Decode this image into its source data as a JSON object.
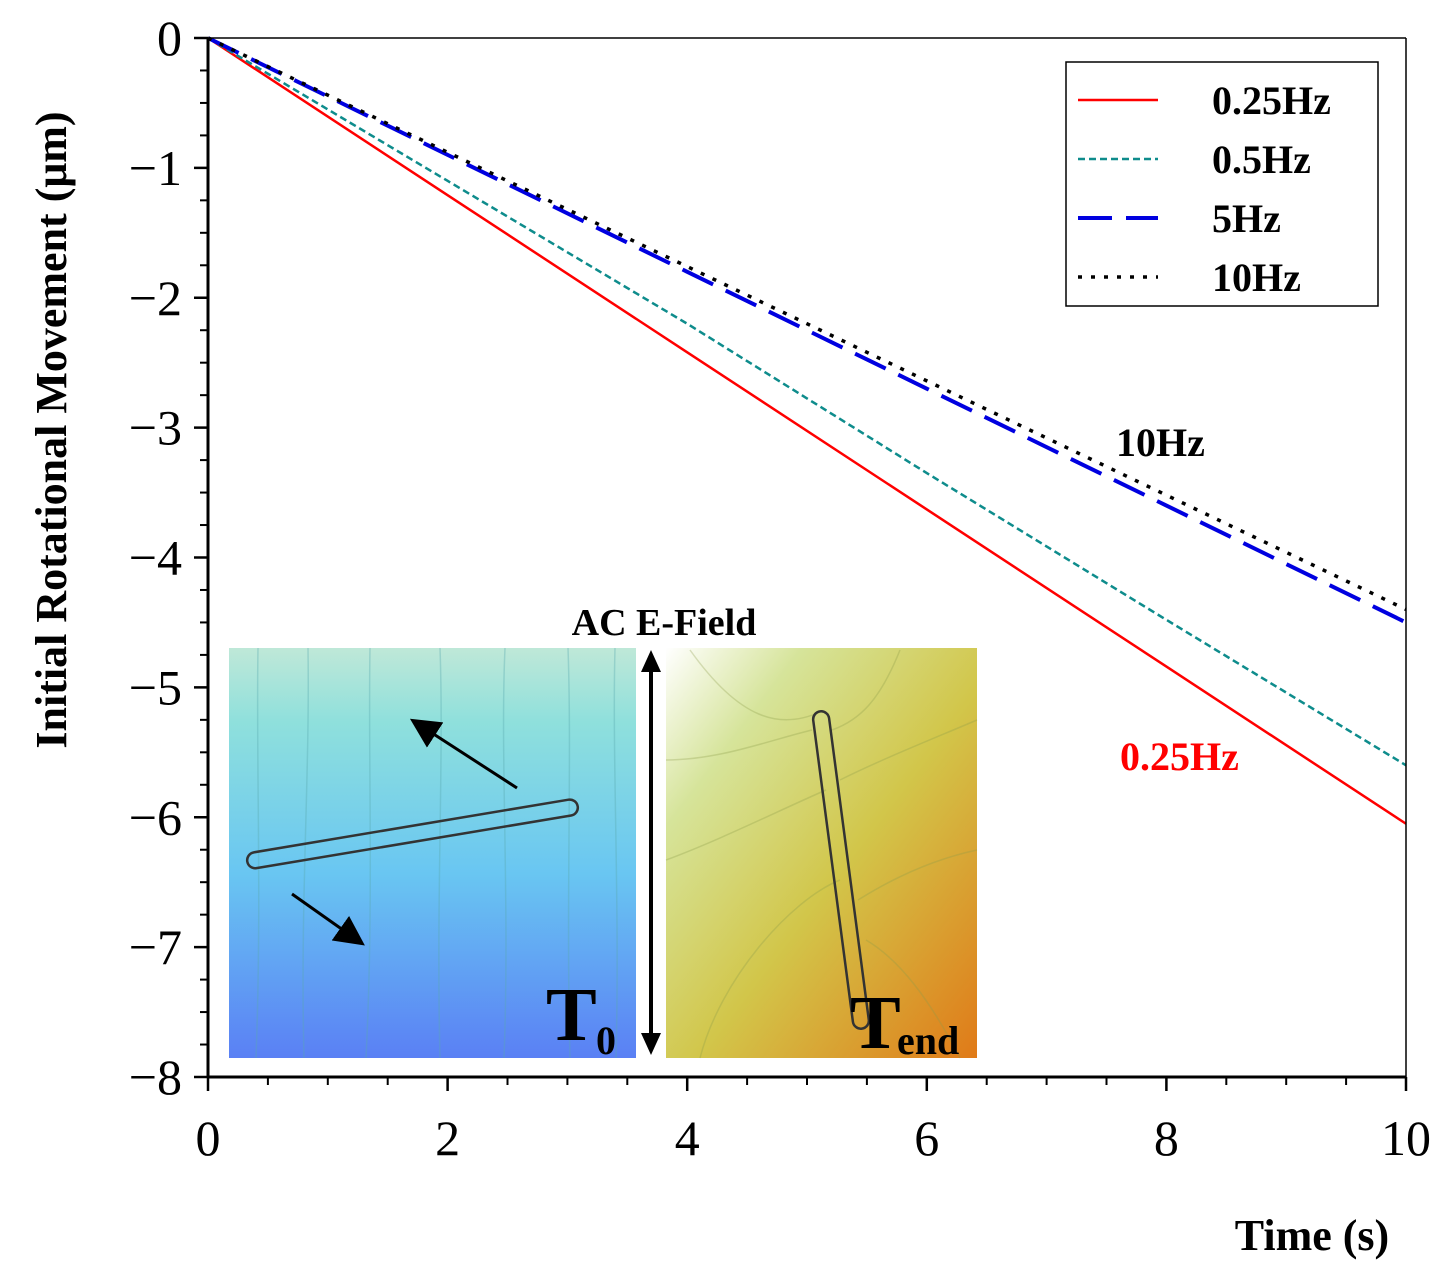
{
  "chart_data": {
    "type": "line",
    "title": "",
    "xlabel": "Time (s)",
    "ylabel": "Initial Rotational Movement (μm)",
    "xlim": [
      0,
      10
    ],
    "ylim": [
      -8,
      0
    ],
    "xticks": [
      "0",
      "2",
      "4",
      "6",
      "8",
      "10"
    ],
    "yticks": [
      "0",
      "−1",
      "−2",
      "−3",
      "−4",
      "−5",
      "−6",
      "−7",
      "−8"
    ],
    "grid": false,
    "legend_position": "top-right",
    "series": [
      {
        "name": "0.25Hz",
        "color": "#ff0000",
        "dash": "solid",
        "x": [
          0,
          2,
          4,
          6,
          8,
          10
        ],
        "y": [
          0,
          -1.21,
          -2.42,
          -3.63,
          -4.84,
          -6.05
        ]
      },
      {
        "name": "0.5Hz",
        "color": "#0e8c8c",
        "dash": "short-dash",
        "x": [
          0,
          2,
          4,
          6,
          8,
          10
        ],
        "y": [
          0,
          -1.1,
          -2.2,
          -3.35,
          -4.48,
          -5.6
        ]
      },
      {
        "name": "5Hz",
        "color": "#0000e0",
        "dash": "long-dash",
        "x": [
          0,
          2,
          4,
          6,
          8,
          10
        ],
        "y": [
          0,
          -0.9,
          -1.8,
          -2.7,
          -3.6,
          -4.5
        ]
      },
      {
        "name": "10Hz",
        "color": "#000000",
        "dash": "dot",
        "x": [
          0,
          2,
          4,
          6,
          8,
          10
        ],
        "y": [
          0,
          -0.88,
          -1.76,
          -2.64,
          -3.52,
          -4.4
        ]
      }
    ],
    "annotations": [
      {
        "text": "10Hz",
        "color": "#000000"
      },
      {
        "text": "0.25Hz",
        "color": "#ff0000"
      }
    ],
    "inset": {
      "field_label": "AC E-Field",
      "start_label": "T",
      "start_sub": "0",
      "end_label": "T",
      "end_sub": "end"
    }
  }
}
